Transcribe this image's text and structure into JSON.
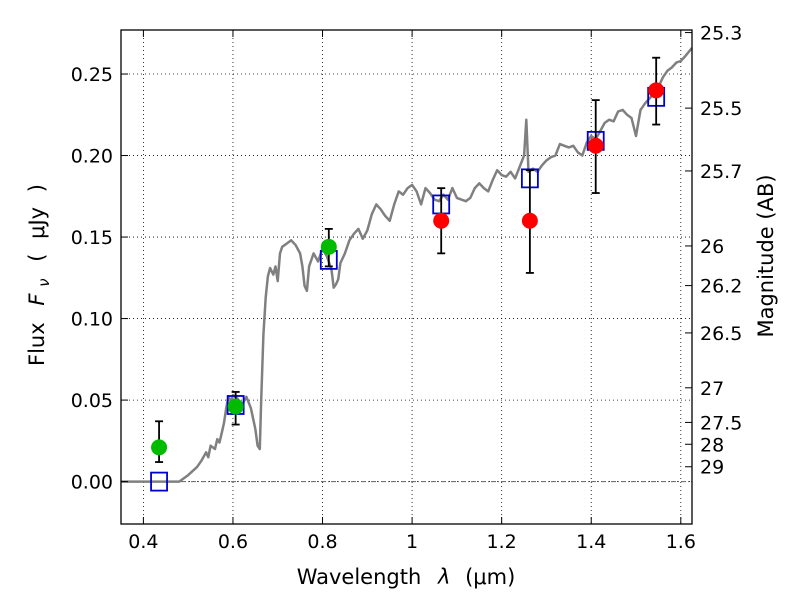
{
  "chart_data": {
    "type": "scatter",
    "xlabel_text": "Wavelength",
    "xlabel_symbol": "λ",
    "xlabel_unit": "(μm)",
    "ylabel_text": "Flux",
    "ylabel_symbol": "F",
    "ylabel_subscript": "ν",
    "ylabel_unit": "μJy",
    "y2label": "Magnitude (AB)",
    "xlim": [
      0.35,
      1.625
    ],
    "ylim": [
      -0.026,
      0.277
    ],
    "x_ticks": [
      {
        "v": 0.4,
        "label": "0.4"
      },
      {
        "v": 0.6,
        "label": "0.6"
      },
      {
        "v": 0.8,
        "label": "0.8"
      },
      {
        "v": 1.0,
        "label": "1"
      },
      {
        "v": 1.2,
        "label": "1.2"
      },
      {
        "v": 1.4,
        "label": "1.4"
      },
      {
        "v": 1.6,
        "label": "1.6"
      }
    ],
    "y_ticks": [
      {
        "v": 0.0,
        "label": "0.00"
      },
      {
        "v": 0.05,
        "label": "0.05"
      },
      {
        "v": 0.1,
        "label": "0.10"
      },
      {
        "v": 0.15,
        "label": "0.15"
      },
      {
        "v": 0.2,
        "label": "0.20"
      },
      {
        "v": 0.25,
        "label": "0.25"
      }
    ],
    "mag_ticks": [
      {
        "v": 25.3,
        "label": "25.3"
      },
      {
        "v": 25.5,
        "label": "25.5"
      },
      {
        "v": 25.7,
        "label": "25.7"
      },
      {
        "v": 26.0,
        "label": "26"
      },
      {
        "v": 26.2,
        "label": "26.2"
      },
      {
        "v": 26.5,
        "label": "26.5"
      },
      {
        "v": 27.0,
        "label": "27"
      },
      {
        "v": 27.5,
        "label": "27.5"
      },
      {
        "v": 28.0,
        "label": "28"
      },
      {
        "v": 29.0,
        "label": "29"
      }
    ],
    "grid": true,
    "colors": {
      "sed": "#808080",
      "model": "#0000cc",
      "green": "#00bb00",
      "red": "#ff0000",
      "errorbar": "#000000",
      "zeroline": "#666666"
    },
    "sed_model": [
      [
        0.35,
        0.0
      ],
      [
        0.48,
        0.0
      ],
      [
        0.5,
        0.004
      ],
      [
        0.52,
        0.009
      ],
      [
        0.53,
        0.013
      ],
      [
        0.54,
        0.018
      ],
      [
        0.545,
        0.015
      ],
      [
        0.55,
        0.022
      ],
      [
        0.56,
        0.02
      ],
      [
        0.565,
        0.026
      ],
      [
        0.57,
        0.024
      ],
      [
        0.575,
        0.03
      ],
      [
        0.58,
        0.036
      ],
      [
        0.585,
        0.045
      ],
      [
        0.59,
        0.052
      ],
      [
        0.595,
        0.049
      ],
      [
        0.6,
        0.053
      ],
      [
        0.61,
        0.051
      ],
      [
        0.62,
        0.047
      ],
      [
        0.63,
        0.052
      ],
      [
        0.64,
        0.045
      ],
      [
        0.65,
        0.032
      ],
      [
        0.655,
        0.022
      ],
      [
        0.66,
        0.02
      ],
      [
        0.663,
        0.05
      ],
      [
        0.668,
        0.09
      ],
      [
        0.673,
        0.113
      ],
      [
        0.678,
        0.126
      ],
      [
        0.683,
        0.131
      ],
      [
        0.69,
        0.127
      ],
      [
        0.695,
        0.132
      ],
      [
        0.7,
        0.123
      ],
      [
        0.705,
        0.14
      ],
      [
        0.71,
        0.144
      ],
      [
        0.72,
        0.146
      ],
      [
        0.73,
        0.148
      ],
      [
        0.74,
        0.145
      ],
      [
        0.75,
        0.14
      ],
      [
        0.755,
        0.132
      ],
      [
        0.76,
        0.12
      ],
      [
        0.765,
        0.117
      ],
      [
        0.77,
        0.132
      ],
      [
        0.78,
        0.14
      ],
      [
        0.79,
        0.135
      ],
      [
        0.8,
        0.143
      ],
      [
        0.81,
        0.138
      ],
      [
        0.82,
        0.13
      ],
      [
        0.825,
        0.119
      ],
      [
        0.83,
        0.121
      ],
      [
        0.835,
        0.124
      ],
      [
        0.84,
        0.134
      ],
      [
        0.85,
        0.14
      ],
      [
        0.86,
        0.148
      ],
      [
        0.87,
        0.152
      ],
      [
        0.88,
        0.155
      ],
      [
        0.89,
        0.149
      ],
      [
        0.9,
        0.154
      ],
      [
        0.91,
        0.164
      ],
      [
        0.92,
        0.17
      ],
      [
        0.93,
        0.167
      ],
      [
        0.94,
        0.163
      ],
      [
        0.95,
        0.16
      ],
      [
        0.96,
        0.17
      ],
      [
        0.97,
        0.178
      ],
      [
        0.98,
        0.176
      ],
      [
        0.99,
        0.18
      ],
      [
        1.0,
        0.182
      ],
      [
        1.01,
        0.178
      ],
      [
        1.02,
        0.17
      ],
      [
        1.03,
        0.18
      ],
      [
        1.04,
        0.177
      ],
      [
        1.05,
        0.173
      ],
      [
        1.06,
        0.172
      ],
      [
        1.07,
        0.176
      ],
      [
        1.08,
        0.173
      ],
      [
        1.09,
        0.18
      ],
      [
        1.1,
        0.174
      ],
      [
        1.12,
        0.172
      ],
      [
        1.13,
        0.174
      ],
      [
        1.14,
        0.18
      ],
      [
        1.15,
        0.183
      ],
      [
        1.16,
        0.18
      ],
      [
        1.17,
        0.178
      ],
      [
        1.18,
        0.185
      ],
      [
        1.19,
        0.191
      ],
      [
        1.2,
        0.188
      ],
      [
        1.21,
        0.187
      ],
      [
        1.22,
        0.19
      ],
      [
        1.23,
        0.186
      ],
      [
        1.24,
        0.193
      ],
      [
        1.25,
        0.2
      ],
      [
        1.255,
        0.222
      ],
      [
        1.26,
        0.19
      ],
      [
        1.27,
        0.192
      ],
      [
        1.28,
        0.19
      ],
      [
        1.29,
        0.194
      ],
      [
        1.3,
        0.197
      ],
      [
        1.31,
        0.199
      ],
      [
        1.32,
        0.2
      ],
      [
        1.33,
        0.207
      ],
      [
        1.34,
        0.206
      ],
      [
        1.35,
        0.205
      ],
      [
        1.36,
        0.206
      ],
      [
        1.37,
        0.202
      ],
      [
        1.38,
        0.2
      ],
      [
        1.39,
        0.208
      ],
      [
        1.4,
        0.212
      ],
      [
        1.41,
        0.21
      ],
      [
        1.42,
        0.215
      ],
      [
        1.43,
        0.22
      ],
      [
        1.44,
        0.222
      ],
      [
        1.45,
        0.221
      ],
      [
        1.46,
        0.227
      ],
      [
        1.47,
        0.228
      ],
      [
        1.48,
        0.225
      ],
      [
        1.49,
        0.223
      ],
      [
        1.5,
        0.212
      ],
      [
        1.51,
        0.228
      ],
      [
        1.52,
        0.232
      ],
      [
        1.53,
        0.235
      ],
      [
        1.54,
        0.238
      ],
      [
        1.55,
        0.242
      ],
      [
        1.56,
        0.248
      ],
      [
        1.57,
        0.252
      ],
      [
        1.58,
        0.254
      ],
      [
        1.59,
        0.257
      ],
      [
        1.6,
        0.258
      ],
      [
        1.61,
        0.261
      ],
      [
        1.625,
        0.266
      ]
    ],
    "model_points": [
      {
        "x": 0.435,
        "y": 0.0
      },
      {
        "x": 0.606,
        "y": 0.047
      },
      {
        "x": 0.814,
        "y": 0.136
      },
      {
        "x": 1.065,
        "y": 0.17
      },
      {
        "x": 1.263,
        "y": 0.186
      },
      {
        "x": 1.41,
        "y": 0.209
      },
      {
        "x": 1.545,
        "y": 0.236
      }
    ],
    "green_points": [
      {
        "x": 0.435,
        "y": 0.021,
        "err_low": 0.012,
        "err_high": 0.037
      },
      {
        "x": 0.606,
        "y": 0.046,
        "err_low": 0.035,
        "err_high": 0.055
      },
      {
        "x": 0.814,
        "y": 0.144,
        "err_low": 0.132,
        "err_high": 0.155
      }
    ],
    "red_points": [
      {
        "x": 1.065,
        "y": 0.16,
        "err_low": 0.14,
        "err_high": 0.18
      },
      {
        "x": 1.263,
        "y": 0.16,
        "err_low": 0.128,
        "err_high": 0.191
      },
      {
        "x": 1.41,
        "y": 0.206,
        "err_low": 0.177,
        "err_high": 0.234
      },
      {
        "x": 1.545,
        "y": 0.24,
        "err_low": 0.219,
        "err_high": 0.26
      }
    ]
  }
}
